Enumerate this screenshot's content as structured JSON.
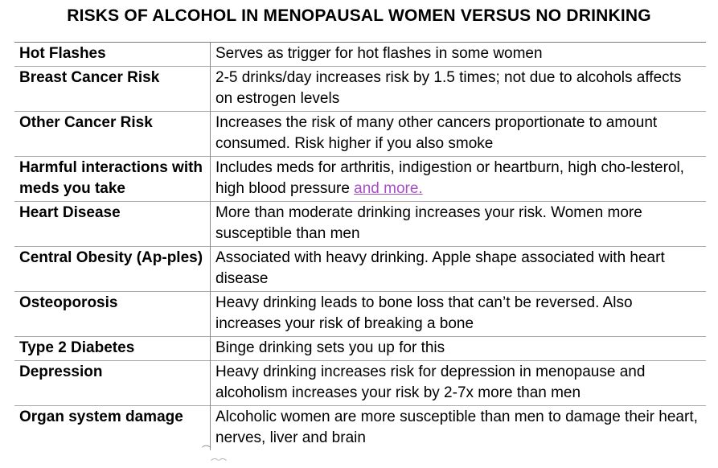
{
  "title": "RISKS OF ALCOHOL IN MENOPAUSAL WOMEN VERSUS NO DRINKING",
  "rows": [
    {
      "risk": "Hot Flashes",
      "description": "Serves as trigger for hot flashes in some women"
    },
    {
      "risk": "Breast Cancer Risk",
      "description": "2-5 drinks/day increases risk by 1.5 times; not due to alcohols affects on estrogen levels"
    },
    {
      "risk": "Other Cancer Risk",
      "description": "Increases the risk of many other cancers proportionate to amount consumed. Risk higher if you also smoke"
    },
    {
      "risk": "Harmful interactions with meds you take",
      "description": "Includes meds for arthritis, indigestion or heartburn, high cho-lesterol, high blood pressure ",
      "link": "and more."
    },
    {
      "risk": "Heart Disease",
      "description": "More than moderate drinking increases your risk. Women more susceptible than men"
    },
    {
      "risk": "Central Obesity (Ap-ples)",
      "description": "Associated with heavy drinking. Apple shape associated with heart disease"
    },
    {
      "risk": "Osteoporosis",
      "description": "Heavy drinking leads to bone loss that can’t be reversed. Also increases your risk of breaking a bone"
    },
    {
      "risk": "Type 2 Diabetes",
      "description": "Binge drinking sets you up for this"
    },
    {
      "risk": "Depression",
      "description": "Heavy drinking increases risk for depression in menopause and alcoholism increases your risk by 2-7x more than men"
    },
    {
      "risk": "Organ system damage",
      "description": "Alcoholic women are more susceptible than men to damage their heart, nerves, liver and brain"
    }
  ],
  "colors": {
    "link": "#a64fc5",
    "border": "#a9a9a9"
  }
}
